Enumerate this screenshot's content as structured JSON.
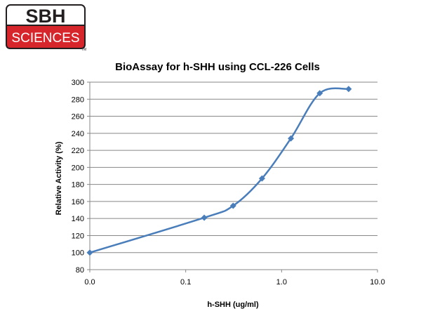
{
  "logo": {
    "top_text": "SBH",
    "bottom_text": "SCIENCES",
    "tm": "TM",
    "colors": {
      "red": "#d7262b",
      "black": "#231f20",
      "white": "#ffffff"
    }
  },
  "chart_data": {
    "type": "line",
    "title": "BioAssay for h-SHH using CCL-226 Cells",
    "xlabel": "h-SHH (ug/ml)",
    "ylabel": "Relative Activity  (%)",
    "xscale": "log",
    "xlim": [
      0.01,
      10.0
    ],
    "xtick_values": [
      0.01,
      0.1,
      1.0,
      10.0
    ],
    "xtick_labels": [
      "0.0",
      "0.1",
      "1.0",
      "10.0"
    ],
    "ylim": [
      80,
      300
    ],
    "yticks": [
      80,
      100,
      120,
      140,
      160,
      180,
      200,
      220,
      240,
      260,
      280,
      300
    ],
    "grid": "horizontal",
    "legend": "none",
    "series": [
      {
        "marker": "diamond",
        "color": "#4a7ebb",
        "x": [
          0.01,
          0.156,
          0.3125,
          0.625,
          1.25,
          2.5,
          5.0
        ],
        "y": [
          100,
          141,
          155,
          187,
          234,
          287,
          292
        ]
      }
    ]
  }
}
